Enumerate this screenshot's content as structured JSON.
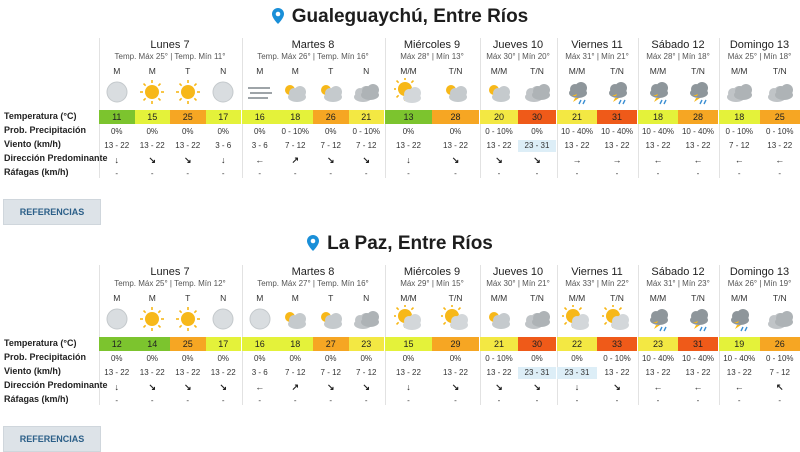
{
  "row_labels": {
    "temp": "Temperatura (°C)",
    "precip": "Prob. Precipitación",
    "wind": "Viento (km/h)",
    "dir": "Dirección Predominante",
    "gusts": "Ráfagas (km/h)"
  },
  "references_label": "REFERENCIAS",
  "colors": {
    "green": "#7cc42e",
    "yellow": "#f3e843",
    "lgreen": "#c9e84a",
    "lyellow": "#e4f23a",
    "orange": "#f6a623",
    "red": "#ef5a19",
    "ygreen": "#d8ec3d"
  },
  "locations": [
    {
      "title": "Gualeguaychú, Entre Ríos",
      "days": [
        {
          "name": "Lunes 7",
          "max": "Temp. Máx 25°",
          "min": "Temp. Mín 11°",
          "periods": [
            {
              "label": "M",
              "icon": "moon-cloud-icon",
              "temp": "11",
              "tcolor": "#7cc42e",
              "precip": "0%",
              "wind": "13 - 22",
              "dir": "↓",
              "gust": "-"
            },
            {
              "label": "M",
              "icon": "sun-icon",
              "temp": "15",
              "tcolor": "#e4f23a",
              "precip": "0%",
              "wind": "13 - 22",
              "dir": "↘",
              "gust": "-"
            },
            {
              "label": "T",
              "icon": "sun-icon",
              "temp": "25",
              "tcolor": "#f6a623",
              "precip": "0%",
              "wind": "13 - 22",
              "dir": "↘",
              "gust": "-"
            },
            {
              "label": "N",
              "icon": "moon-cloud-icon",
              "temp": "17",
              "tcolor": "#e4f23a",
              "precip": "0%",
              "wind": "3 - 6",
              "dir": "↓",
              "gust": "-"
            }
          ]
        },
        {
          "name": "Martes 8",
          "max": "Temp. Máx 26°",
          "min": "Temp. Mín 16°",
          "periods": [
            {
              "label": "M",
              "icon": "fog-icon",
              "temp": "16",
              "tcolor": "#e4f23a",
              "precip": "0%",
              "wind": "3 - 6",
              "dir": "←",
              "gust": "-"
            },
            {
              "label": "M",
              "icon": "partly-cloudy-icon",
              "temp": "18",
              "tcolor": "#e4f23a",
              "precip": "0 - 10%",
              "wind": "7 - 12",
              "dir": "↗",
              "gust": "-"
            },
            {
              "label": "T",
              "icon": "partly-cloudy-icon",
              "temp": "26",
              "tcolor": "#f6a623",
              "precip": "0%",
              "wind": "7 - 12",
              "dir": "↘",
              "gust": "-"
            },
            {
              "label": "N",
              "icon": "cloudy-icon",
              "temp": "21",
              "tcolor": "#f3e843",
              "precip": "0 - 10%",
              "wind": "7 - 12",
              "dir": "↘",
              "gust": "-"
            }
          ]
        },
        {
          "name": "Miércoles 9",
          "max": "Máx 28°",
          "min": "Mín 13°",
          "periods": [
            {
              "label": "M/M",
              "icon": "sun-cloud-icon",
              "temp": "13",
              "tcolor": "#7cc42e",
              "precip": "0%",
              "wind": "13 - 22",
              "dir": "↓",
              "gust": "-"
            },
            {
              "label": "T/N",
              "icon": "partly-cloudy-icon",
              "temp": "28",
              "tcolor": "#f6a623",
              "precip": "0%",
              "wind": "13 - 22",
              "dir": "↘",
              "gust": "-"
            }
          ]
        },
        {
          "name": "Jueves 10",
          "max": "Máx 30°",
          "min": "Mín 20°",
          "periods": [
            {
              "label": "M/M",
              "icon": "partly-cloudy-icon",
              "temp": "20",
              "tcolor": "#f3e843",
              "precip": "0 - 10%",
              "wind": "13 - 22",
              "dir": "↘",
              "gust": "-",
              "hi": false
            },
            {
              "label": "T/N",
              "icon": "cloudy-icon",
              "temp": "30",
              "tcolor": "#ef5a19",
              "precip": "0%",
              "wind": "23 - 31",
              "dir": "↘",
              "gust": "-",
              "hi": true
            }
          ]
        },
        {
          "name": "Viernes 11",
          "max": "Máx 31°",
          "min": "Mín 21°",
          "periods": [
            {
              "label": "M/M",
              "icon": "storm-icon",
              "temp": "21",
              "tcolor": "#f3e843",
              "precip": "10 - 40%",
              "wind": "13 - 22",
              "dir": "→",
              "gust": "-"
            },
            {
              "label": "T/N",
              "icon": "storm-icon",
              "temp": "31",
              "tcolor": "#ef5a19",
              "precip": "10 - 40%",
              "wind": "13 - 22",
              "dir": "→",
              "gust": "-"
            }
          ]
        },
        {
          "name": "Sábado 12",
          "max": "Máx 28°",
          "min": "Mín 18°",
          "periods": [
            {
              "label": "M/M",
              "icon": "storm-icon",
              "temp": "18",
              "tcolor": "#e4f23a",
              "precip": "10 - 40%",
              "wind": "13 - 22",
              "dir": "←",
              "gust": "-"
            },
            {
              "label": "T/N",
              "icon": "storm-icon",
              "temp": "28",
              "tcolor": "#f6a623",
              "precip": "10 - 40%",
              "wind": "13 - 22",
              "dir": "←",
              "gust": "-"
            }
          ]
        },
        {
          "name": "Domingo 13",
          "max": "Máx 25°",
          "min": "Mín 18°",
          "periods": [
            {
              "label": "M/M",
              "icon": "cloudy-icon",
              "temp": "18",
              "tcolor": "#e4f23a",
              "precip": "0 - 10%",
              "wind": "7 - 12",
              "dir": "←",
              "gust": "-"
            },
            {
              "label": "T/N",
              "icon": "cloudy-icon",
              "temp": "25",
              "tcolor": "#f6a623",
              "precip": "0 - 10%",
              "wind": "13 - 22",
              "dir": "←",
              "gust": "-"
            }
          ]
        }
      ]
    },
    {
      "title": "La Paz, Entre Ríos",
      "days": [
        {
          "name": "Lunes 7",
          "max": "Temp. Máx 25°",
          "min": "Temp. Mín 12°",
          "periods": [
            {
              "label": "M",
              "icon": "moon-cloud-icon",
              "temp": "12",
              "tcolor": "#7cc42e",
              "precip": "0%",
              "wind": "13 - 22",
              "dir": "↓",
              "gust": "-"
            },
            {
              "label": "M",
              "icon": "sun-icon",
              "temp": "14",
              "tcolor": "#7cc42e",
              "precip": "0%",
              "wind": "13 - 22",
              "dir": "↘",
              "gust": "-"
            },
            {
              "label": "T",
              "icon": "sun-icon",
              "temp": "25",
              "tcolor": "#f6a623",
              "precip": "0%",
              "wind": "13 - 22",
              "dir": "↘",
              "gust": "-"
            },
            {
              "label": "N",
              "icon": "moon-cloud-icon",
              "temp": "17",
              "tcolor": "#e4f23a",
              "precip": "0%",
              "wind": "13 - 22",
              "dir": "↘",
              "gust": "-"
            }
          ]
        },
        {
          "name": "Martes 8",
          "max": "Temp. Máx 27°",
          "min": "Temp. Mín 16°",
          "periods": [
            {
              "label": "M",
              "icon": "moon-cloud-icon",
              "temp": "16",
              "tcolor": "#e4f23a",
              "precip": "0%",
              "wind": "3 - 6",
              "dir": "←",
              "gust": "-"
            },
            {
              "label": "M",
              "icon": "partly-cloudy-icon",
              "temp": "18",
              "tcolor": "#e4f23a",
              "precip": "0%",
              "wind": "7 - 12",
              "dir": "↗",
              "gust": "-"
            },
            {
              "label": "T",
              "icon": "partly-cloudy-icon",
              "temp": "27",
              "tcolor": "#f6a623",
              "precip": "0%",
              "wind": "7 - 12",
              "dir": "↘",
              "gust": "-"
            },
            {
              "label": "N",
              "icon": "cloudy-icon",
              "temp": "23",
              "tcolor": "#f3e843",
              "precip": "0%",
              "wind": "7 - 12",
              "dir": "↘",
              "gust": "-"
            }
          ]
        },
        {
          "name": "Miércoles 9",
          "max": "Máx 29°",
          "min": "Mín 15°",
          "periods": [
            {
              "label": "M/M",
              "icon": "sun-cloud-icon",
              "temp": "15",
              "tcolor": "#e4f23a",
              "precip": "0%",
              "wind": "13 - 22",
              "dir": "↓",
              "gust": "-"
            },
            {
              "label": "T/N",
              "icon": "sun-cloud-icon",
              "temp": "29",
              "tcolor": "#f6a623",
              "precip": "0%",
              "wind": "13 - 22",
              "dir": "↘",
              "gust": "-"
            }
          ]
        },
        {
          "name": "Jueves 10",
          "max": "Máx 30°",
          "min": "Mín 21°",
          "periods": [
            {
              "label": "M/M",
              "icon": "partly-cloudy-icon",
              "temp": "21",
              "tcolor": "#f3e843",
              "precip": "0 - 10%",
              "wind": "13 - 22",
              "dir": "↘",
              "gust": "-",
              "hi": false
            },
            {
              "label": "T/N",
              "icon": "cloudy-icon",
              "temp": "30",
              "tcolor": "#ef5a19",
              "precip": "0%",
              "wind": "23 - 31",
              "dir": "↘",
              "gust": "-",
              "hi": true
            }
          ]
        },
        {
          "name": "Viernes 11",
          "max": "Máx 33°",
          "min": "Mín 22°",
          "periods": [
            {
              "label": "M/M",
              "icon": "sun-cloud-icon",
              "temp": "22",
              "tcolor": "#f3e843",
              "precip": "0%",
              "wind": "23 - 31",
              "dir": "↓",
              "gust": "-",
              "hi": true
            },
            {
              "label": "T/N",
              "icon": "sun-cloud-icon",
              "temp": "33",
              "tcolor": "#ef5a19",
              "precip": "0 - 10%",
              "wind": "13 - 22",
              "dir": "↘",
              "gust": "-"
            }
          ]
        },
        {
          "name": "Sábado 12",
          "max": "Máx 31°",
          "min": "Mín 23°",
          "periods": [
            {
              "label": "M/M",
              "icon": "storm-icon",
              "temp": "23",
              "tcolor": "#f3e843",
              "precip": "10 - 40%",
              "wind": "13 - 22",
              "dir": "←",
              "gust": "-"
            },
            {
              "label": "T/N",
              "icon": "storm-icon",
              "temp": "31",
              "tcolor": "#ef5a19",
              "precip": "10 - 40%",
              "wind": "13 - 22",
              "dir": "←",
              "gust": "-"
            }
          ]
        },
        {
          "name": "Domingo 13",
          "max": "Máx 26°",
          "min": "Mín 19°",
          "periods": [
            {
              "label": "M/M",
              "icon": "storm-icon",
              "temp": "19",
              "tcolor": "#e4f23a",
              "precip": "10 - 40%",
              "wind": "13 - 22",
              "dir": "←",
              "gust": "-"
            },
            {
              "label": "T/N",
              "icon": "cloudy-icon",
              "temp": "26",
              "tcolor": "#f6a623",
              "precip": "0 - 10%",
              "wind": "7 - 12",
              "dir": "↖",
              "gust": "-"
            }
          ]
        }
      ]
    }
  ]
}
